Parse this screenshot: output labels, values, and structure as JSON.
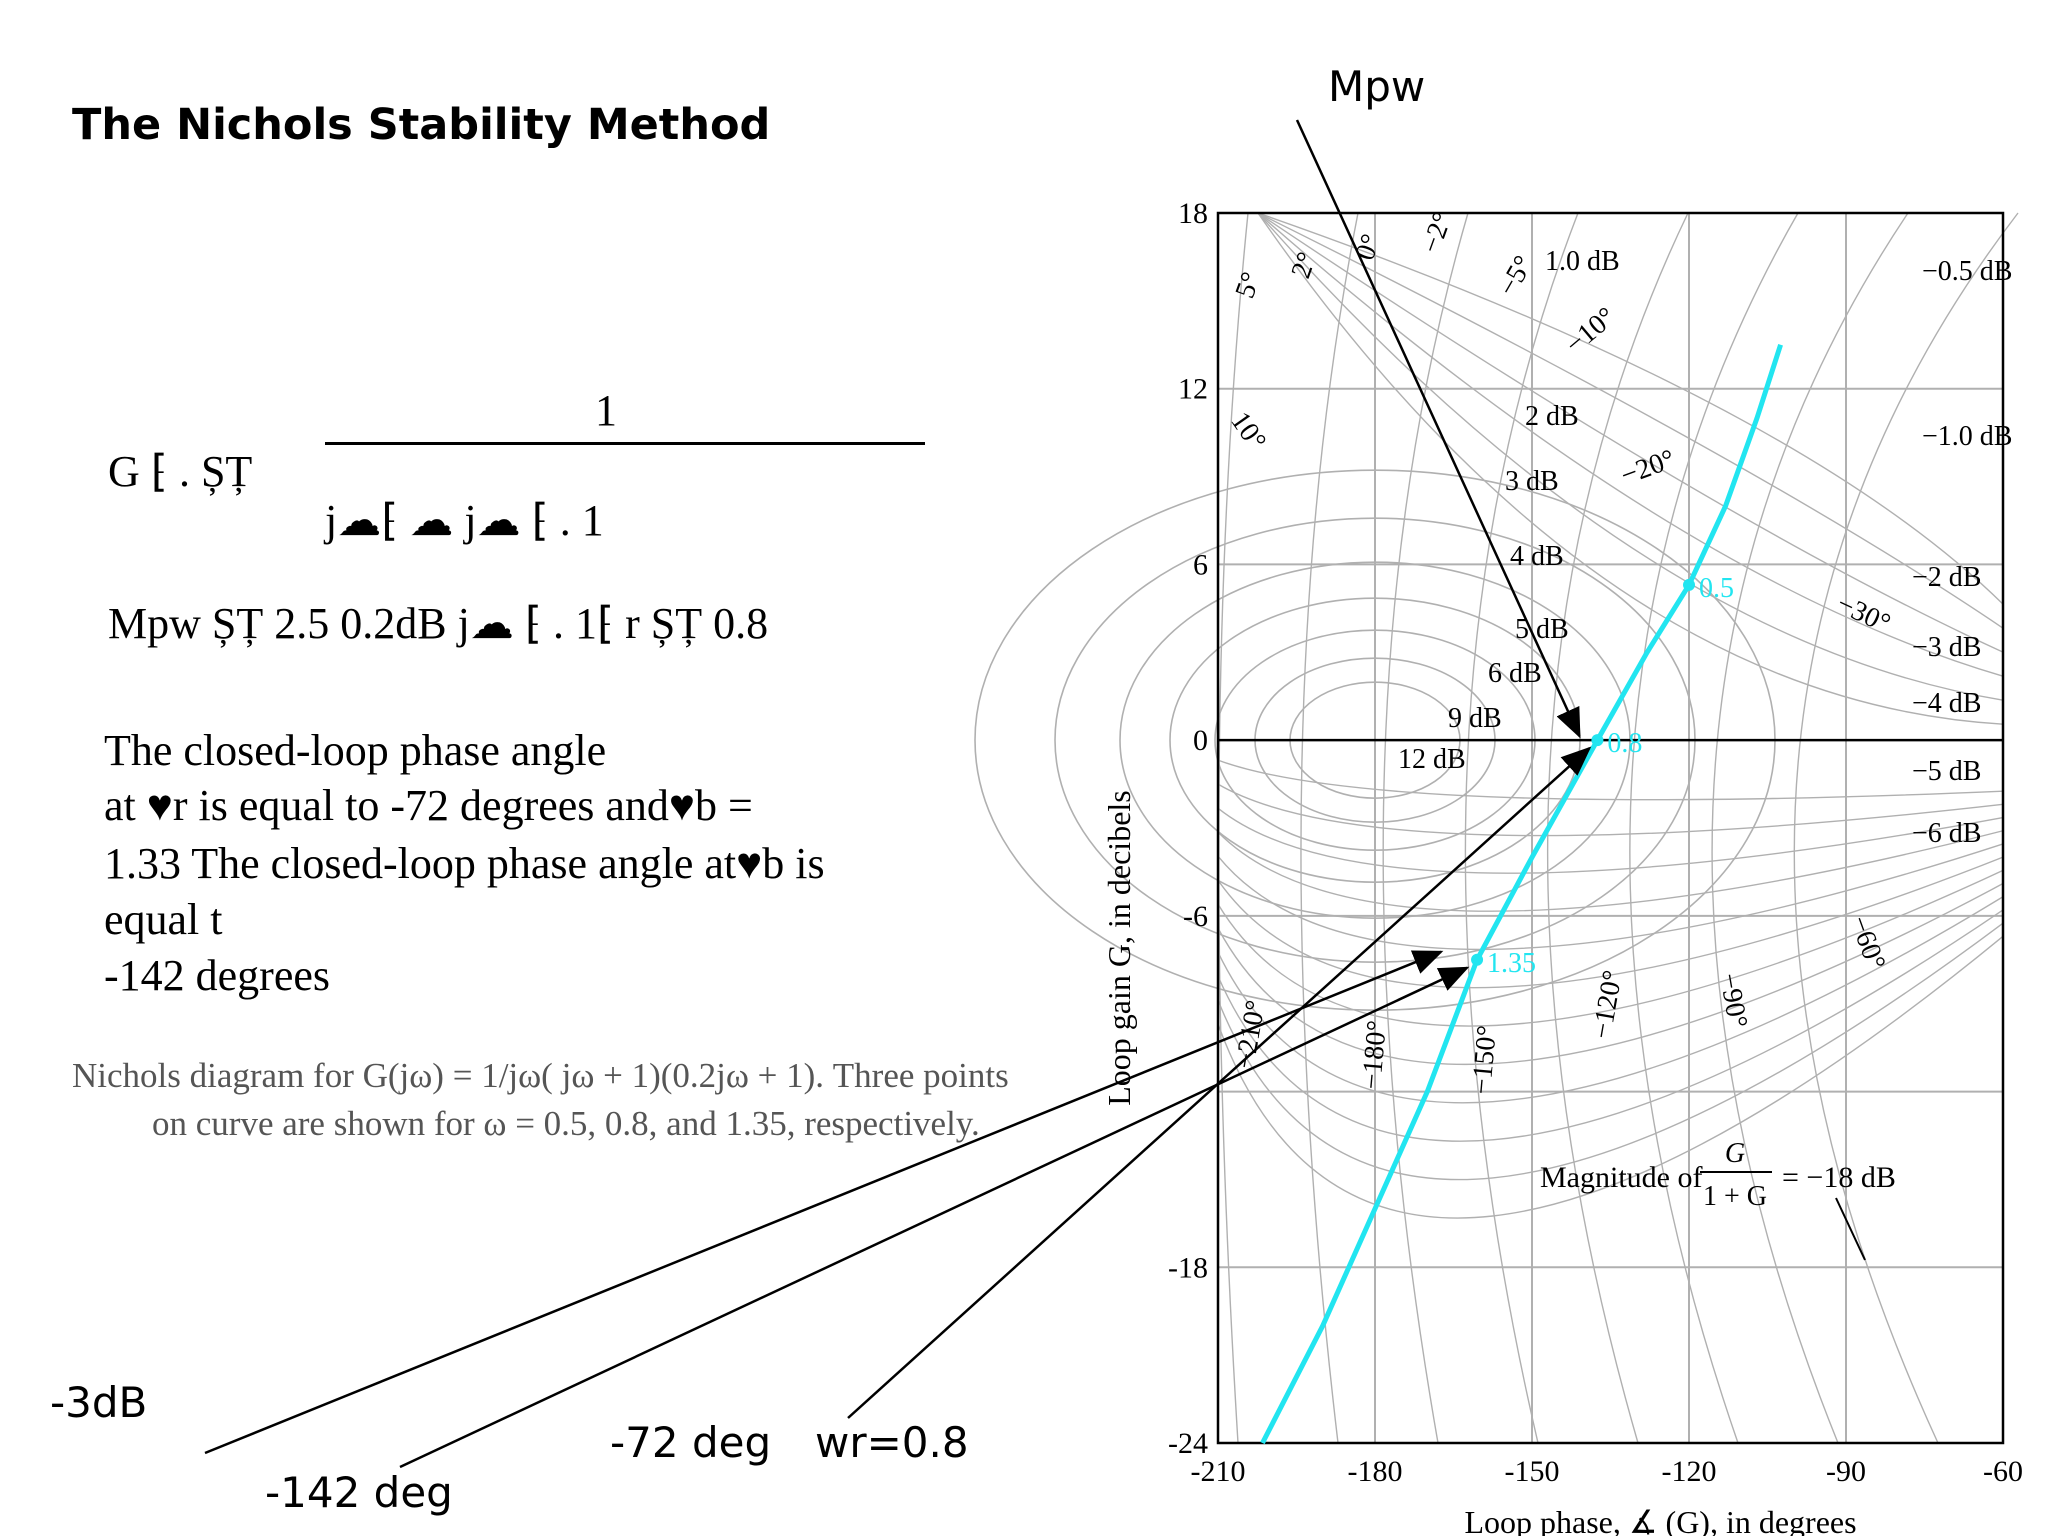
{
  "title": "The Nichols Stability Method",
  "mpw_label": "Mpw",
  "equation": {
    "numerator": "1",
    "lhs": "G ⁅ . ȘȚ",
    "denominator": "j☁⁅ ☁ j☁ ⁅ . 1",
    "line2": "Mpw ȘȚ 2.5 0.2dB j☁ ⁅ . 1⁅ r ȘȚ 0.8"
  },
  "body_lines": [
    "The closed-loop phase angle",
    " at ♥r is equal to -72 degrees and♥b =",
    "1.33 The closed-loop phase angle at♥b is",
    "equal t",
    " -142 degrees"
  ],
  "caption_lines": [
    "Nichols diagram for G(jω) = 1/jω( jω + 1)(0.2jω + 1). Three points",
    "on curve are shown for ω = 0.5, 0.8, and 1.35, respectively."
  ],
  "callouts": {
    "minus3db": "-3dB",
    "minus142": "-142 deg",
    "minus72": "-72 deg",
    "wr": "wr=0.8"
  },
  "chart_data": {
    "type": "line",
    "xlabel": "Loop phase, ∡ (G), in degrees",
    "ylabel": "Loop gain G, in decibels",
    "xlim": [
      -210,
      -60
    ],
    "ylim": [
      -24,
      18
    ],
    "xticks": [
      "-210",
      "-180",
      "-150",
      "-120",
      "-90",
      "-60"
    ],
    "yticks": [
      "18",
      "12",
      "6",
      "0",
      "-6",
      "-18",
      "-24"
    ],
    "grid": true,
    "series": [
      {
        "color": "#22e5f0",
        "x": [
          -201.5,
          -190,
          -180,
          -170,
          -160.5,
          -150,
          -137.5,
          -128,
          -120,
          -113,
          -107,
          -102.5
        ],
        "y": [
          -24,
          -20,
          -16,
          -12,
          -7.5,
          -4,
          0,
          3,
          5.3,
          8,
          11,
          13.5
        ]
      }
    ],
    "points": [
      {
        "label": "0.5",
        "x": -120,
        "y": 5.3
      },
      {
        "label": "0.8",
        "x": -137.5,
        "y": 0
      },
      {
        "label": "1.35",
        "x": -160.5,
        "y": -7.5
      }
    ],
    "m_contours": [
      "1.0 dB",
      "2 dB",
      "3 dB",
      "4 dB",
      "5 dB",
      "6 dB",
      "9 dB",
      "12 dB",
      "−0.5 dB",
      "−1.0 dB",
      "−2 dB",
      "−3 dB",
      "−4 dB",
      "−5 dB",
      "−6 dB"
    ],
    "phase_contours": [
      "5°",
      "2°",
      "0°",
      "−2°",
      "−5°",
      "−10°",
      "10°",
      "−20°",
      "−30°",
      "−60°",
      "−90°",
      "−120°",
      "−150°",
      "−180°",
      "−210°"
    ],
    "magnitude_note_prefix": "Magnitude of",
    "magnitude_note_num": "G",
    "magnitude_note_den": "1 + G",
    "magnitude_note_suffix": "= −18 dB",
    "line_color": "#000000",
    "grid_color": "#b0b0b0"
  }
}
